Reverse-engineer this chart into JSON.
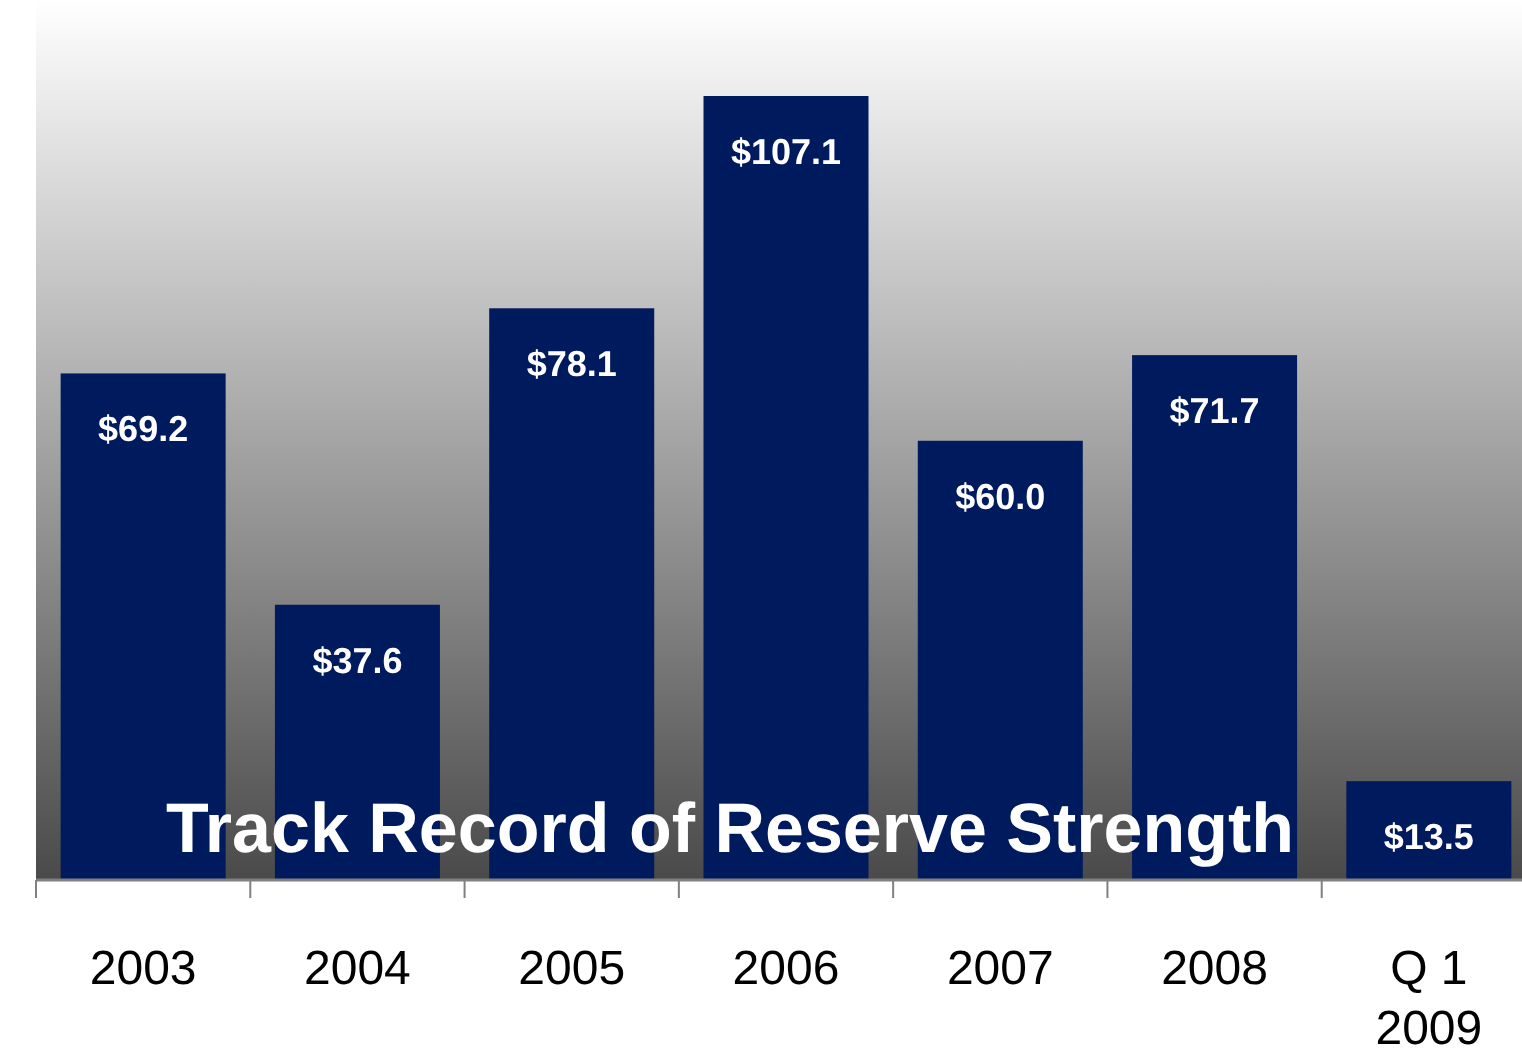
{
  "chart_data": {
    "type": "bar",
    "title": "Track Record of Reserve Strength",
    "categories": [
      "2003",
      "2004",
      "2005",
      "2006",
      "2007",
      "2008",
      "Q 1\n2009"
    ],
    "values": [
      69.2,
      37.6,
      78.1,
      107.1,
      60.0,
      71.7,
      13.5
    ],
    "value_labels": [
      "$69.2",
      "$37.6",
      "$78.1",
      "$107.1",
      "$60.0",
      "$71.7",
      "$13.5"
    ],
    "color": "#001a5e"
  }
}
